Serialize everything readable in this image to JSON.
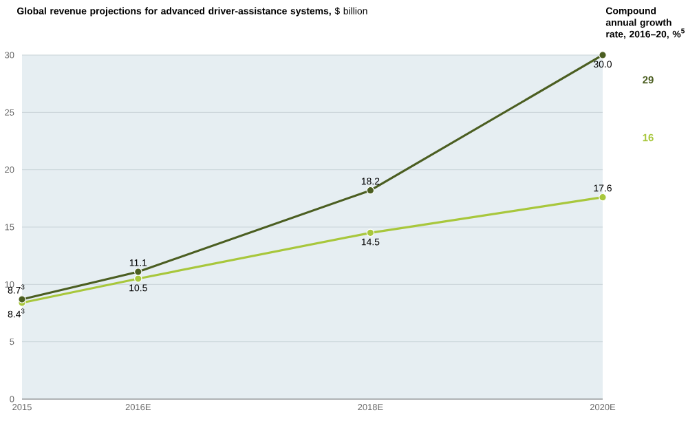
{
  "chart_data": {
    "type": "line",
    "title": "**Global revenue projections for advanced driver-assistance systems,** $ billion",
    "x": [
      2015,
      2016,
      2018,
      2020
    ],
    "xlim": [
      2015,
      2020
    ],
    "xticks": [
      2015,
      {
        "value": 2016,
        "label": "2016E"
      },
      {
        "value": 2018,
        "label": "2018E"
      },
      {
        "value": 2020,
        "label": "2020E"
      }
    ],
    "ylim": [
      0,
      30
    ],
    "yticks": [
      0,
      5,
      10,
      15,
      20,
      25,
      30
    ],
    "grid": "y",
    "marker": "circle",
    "series": [
      {
        "color": "#a8c73c",
        "values": [
          8.4,
          10.5,
          14.5,
          17.6
        ],
        "value_labels": [
          "8.4$^{3}$",
          "10.5",
          "14.5",
          "17.6"
        ]
      },
      {
        "color": "#4b5e21",
        "values": [
          8.7,
          11.1,
          18.2,
          30.0
        ],
        "value_labels": [
          "8.7$^{3}$",
          "11.1",
          "18.2",
          "30.0"
        ]
      }
    ],
    "annotations": [
      "**Compound annual growth rate, 2016–20, %$^{5}$**",
      "29",
      "16"
    ]
  }
}
